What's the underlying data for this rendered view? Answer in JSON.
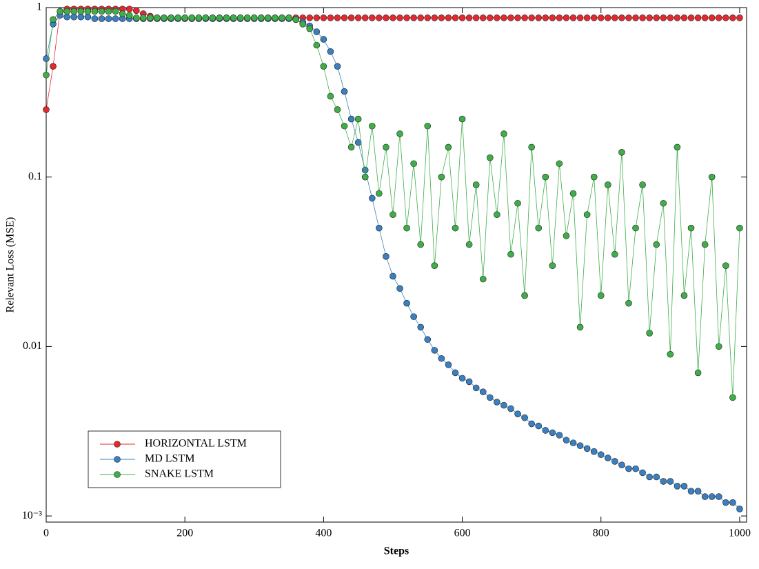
{
  "chart_data": {
    "type": "line",
    "x_label": "Steps",
    "y_label": "Relevant Loss (MSE)",
    "xlim": [
      0,
      1010
    ],
    "xticks": [
      0,
      200,
      400,
      600,
      800,
      1000
    ],
    "yscale": "log",
    "ylim": [
      0.00092,
      1
    ],
    "yticks": [
      1,
      0.1,
      0.01,
      {
        "value": 0.001,
        "label": "10⁻³"
      }
    ],
    "legend": "lower left",
    "x": [
      0,
      10,
      20,
      30,
      40,
      50,
      60,
      70,
      80,
      90,
      100,
      110,
      120,
      130,
      140,
      150,
      160,
      170,
      180,
      190,
      200,
      210,
      220,
      230,
      240,
      250,
      260,
      270,
      280,
      290,
      300,
      310,
      320,
      330,
      340,
      350,
      360,
      370,
      380,
      390,
      400,
      410,
      420,
      430,
      440,
      450,
      460,
      470,
      480,
      490,
      500,
      510,
      520,
      530,
      540,
      550,
      560,
      570,
      580,
      590,
      600,
      610,
      620,
      630,
      640,
      650,
      660,
      670,
      680,
      690,
      700,
      710,
      720,
      730,
      740,
      750,
      760,
      770,
      780,
      790,
      800,
      810,
      820,
      830,
      840,
      850,
      860,
      870,
      880,
      890,
      900,
      910,
      920,
      930,
      940,
      950,
      960,
      970,
      980,
      990,
      1000
    ],
    "series": [
      {
        "name": "HORIZONTAL LSTM",
        "color": "#e3292f",
        "values": [
          0.25,
          0.45,
          0.95,
          0.98,
          0.98,
          0.98,
          0.98,
          0.98,
          0.98,
          0.98,
          0.98,
          0.98,
          0.98,
          0.96,
          0.92,
          0.89,
          0.87,
          0.87,
          0.87,
          0.87,
          0.87,
          0.87,
          0.87,
          0.87,
          0.87,
          0.87,
          0.87,
          0.87,
          0.87,
          0.87,
          0.87,
          0.87,
          0.87,
          0.87,
          0.87,
          0.87,
          0.87,
          0.87,
          0.87,
          0.87,
          0.87,
          0.87,
          0.87,
          0.87,
          0.87,
          0.87,
          0.87,
          0.87,
          0.87,
          0.87,
          0.87,
          0.87,
          0.87,
          0.87,
          0.87,
          0.87,
          0.87,
          0.87,
          0.87,
          0.87,
          0.87,
          0.87,
          0.87,
          0.87,
          0.87,
          0.87,
          0.87,
          0.87,
          0.87,
          0.87,
          0.87,
          0.87,
          0.87,
          0.87,
          0.87,
          0.87,
          0.87,
          0.87,
          0.87,
          0.87,
          0.87,
          0.87,
          0.87,
          0.87,
          0.87,
          0.87,
          0.87,
          0.87,
          0.87,
          0.87,
          0.87,
          0.87,
          0.87,
          0.87,
          0.87,
          0.87,
          0.87,
          0.87,
          0.87,
          0.87,
          0.87
        ]
      },
      {
        "name": "MD LSTM",
        "color": "#3a7fc0",
        "values": [
          0.5,
          0.8,
          0.9,
          0.88,
          0.88,
          0.88,
          0.88,
          0.86,
          0.86,
          0.86,
          0.86,
          0.86,
          0.86,
          0.86,
          0.86,
          0.86,
          0.86,
          0.86,
          0.86,
          0.86,
          0.86,
          0.86,
          0.86,
          0.86,
          0.86,
          0.86,
          0.86,
          0.86,
          0.86,
          0.86,
          0.86,
          0.86,
          0.86,
          0.86,
          0.86,
          0.86,
          0.85,
          0.82,
          0.78,
          0.72,
          0.65,
          0.55,
          0.45,
          0.32,
          0.22,
          0.16,
          0.11,
          0.075,
          0.05,
          0.034,
          0.026,
          0.022,
          0.018,
          0.015,
          0.013,
          0.011,
          0.0095,
          0.0085,
          0.0078,
          0.007,
          0.0065,
          0.0062,
          0.0057,
          0.0054,
          0.005,
          0.0047,
          0.0045,
          0.0043,
          0.004,
          0.0038,
          0.0035,
          0.0034,
          0.0032,
          0.0031,
          0.003,
          0.0028,
          0.0027,
          0.0026,
          0.0025,
          0.0024,
          0.0023,
          0.0022,
          0.0021,
          0.002,
          0.0019,
          0.0019,
          0.0018,
          0.0017,
          0.0017,
          0.0016,
          0.0016,
          0.0015,
          0.0015,
          0.0014,
          0.0014,
          0.0013,
          0.0013,
          0.0013,
          0.0012,
          0.0012,
          0.0011
        ]
      },
      {
        "name": "SNAKE LSTM",
        "color": "#3fae49",
        "values": [
          0.4,
          0.85,
          0.95,
          0.95,
          0.95,
          0.95,
          0.95,
          0.95,
          0.95,
          0.95,
          0.95,
          0.92,
          0.9,
          0.87,
          0.87,
          0.87,
          0.87,
          0.87,
          0.87,
          0.87,
          0.87,
          0.87,
          0.87,
          0.87,
          0.87,
          0.87,
          0.87,
          0.87,
          0.87,
          0.87,
          0.87,
          0.87,
          0.87,
          0.87,
          0.87,
          0.87,
          0.85,
          0.8,
          0.75,
          0.6,
          0.45,
          0.3,
          0.25,
          0.2,
          0.15,
          0.22,
          0.1,
          0.2,
          0.08,
          0.15,
          0.06,
          0.18,
          0.05,
          0.12,
          0.04,
          0.2,
          0.03,
          0.1,
          0.15,
          0.05,
          0.22,
          0.04,
          0.09,
          0.025,
          0.13,
          0.06,
          0.18,
          0.035,
          0.07,
          0.02,
          0.15,
          0.05,
          0.1,
          0.03,
          0.12,
          0.045,
          0.08,
          0.013,
          0.06,
          0.1,
          0.02,
          0.09,
          0.035,
          0.14,
          0.018,
          0.05,
          0.09,
          0.012,
          0.04,
          0.07,
          0.009,
          0.15,
          0.02,
          0.05,
          0.007,
          0.04,
          0.1,
          0.01,
          0.03,
          0.005,
          0.05
        ]
      }
    ]
  }
}
